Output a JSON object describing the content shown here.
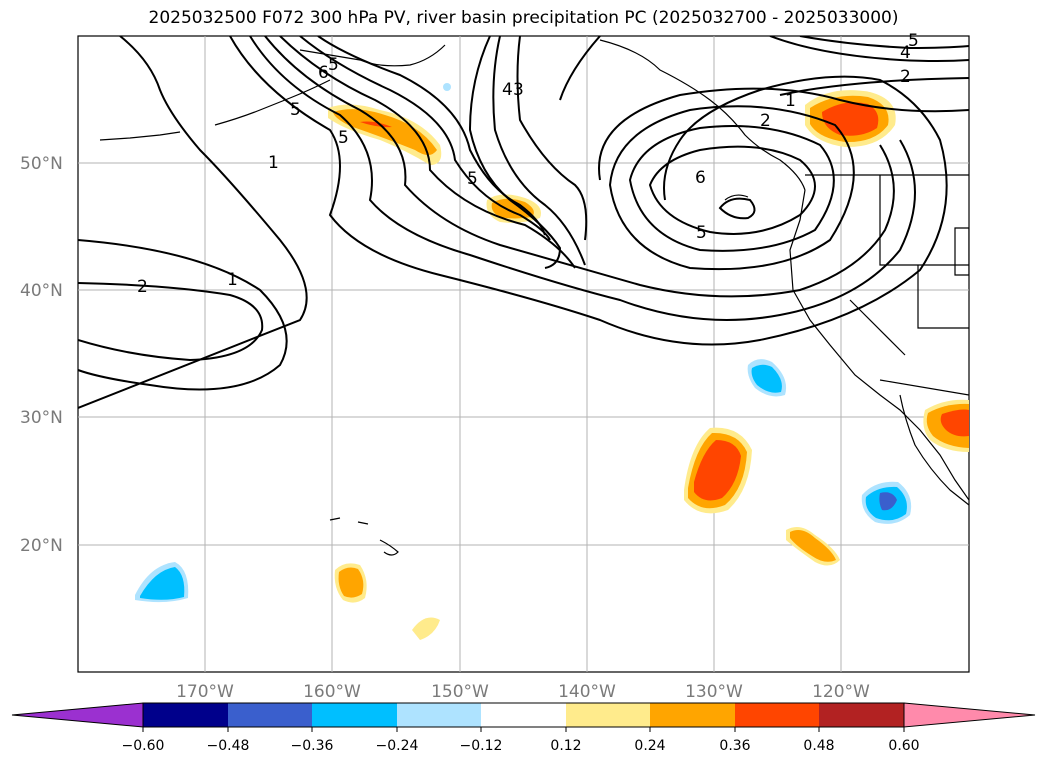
{
  "title": "2025032500 F072 300 hPa PV, river basin precipitation PC (2025032700 - 2025033000)",
  "map": {
    "lat_labels": [
      "50°N",
      "40°N",
      "30°N",
      "20°N"
    ],
    "lon_labels": [
      "170°W",
      "160°W",
      "150°W",
      "140°W",
      "130°W",
      "120°W"
    ],
    "contour_labels": [
      "6",
      "5",
      "5",
      "1",
      "2",
      "1",
      "5",
      "4",
      "3",
      "2",
      "1",
      "6",
      "5",
      "2",
      "4",
      "5",
      "5"
    ]
  },
  "colorbar": {
    "ticks": [
      "−0.60",
      "−0.48",
      "−0.36",
      "−0.24",
      "−0.12",
      "0.12",
      "0.24",
      "0.36",
      "0.48",
      "0.60"
    ],
    "colors": [
      "#9b30d0",
      "#00008b",
      "#3a5fcd",
      "#00bfff",
      "#aee3ff",
      "#ffffff",
      "#ffeb8c",
      "#ffa500",
      "#ff4500",
      "#b22222",
      "#ff8aab"
    ]
  }
}
